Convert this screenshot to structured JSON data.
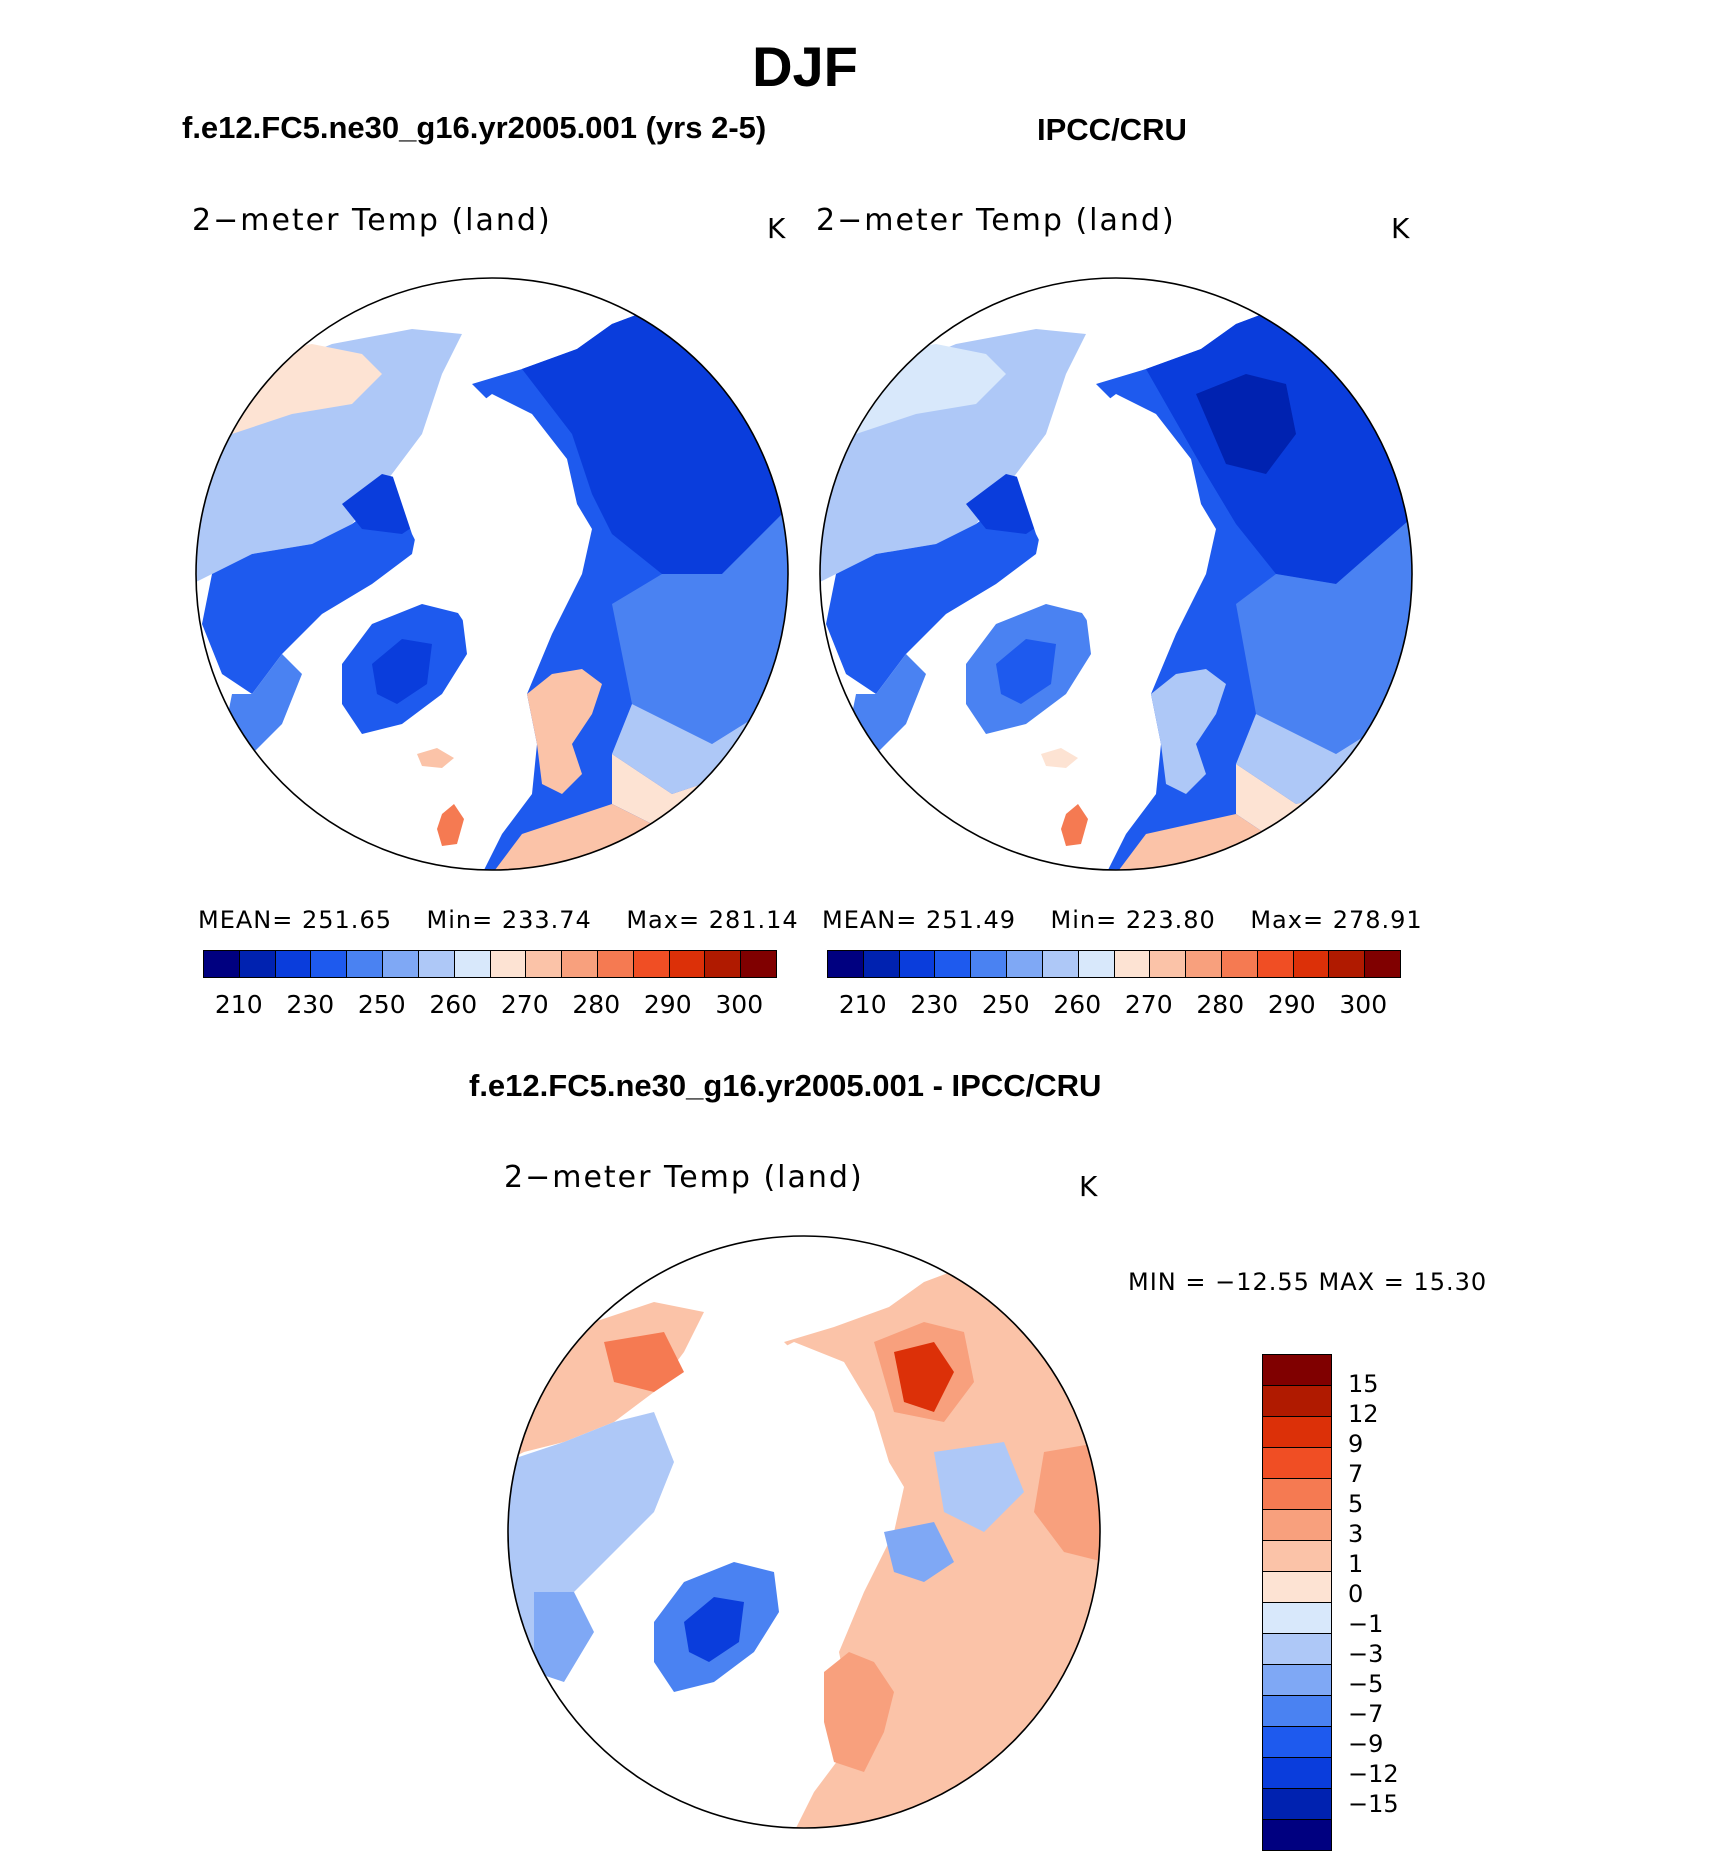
{
  "title": "DJF",
  "panels": {
    "model": {
      "title": "f.e12.FC5.ne30_g16.yr2005.001 (yrs 2-5)",
      "variable": "2−meter Temp (land)",
      "units": "K",
      "mean_label": "MEAN=",
      "mean": "251.65",
      "min_label": "Min=",
      "min": "233.74",
      "max_label": "Max=",
      "max": "281.14"
    },
    "obs": {
      "title": "IPCC/CRU",
      "variable": "2−meter Temp (land)",
      "units": "K",
      "mean_label": "MEAN=",
      "mean": "251.49",
      "min_label": "Min=",
      "min": "223.80",
      "max_label": "Max=",
      "max": "278.91"
    },
    "diff": {
      "title": "f.e12.FC5.ne30_g16.yr2005.001 - IPCC/CRU",
      "variable": "2−meter Temp (land)",
      "units": "K",
      "minmax_text": "MIN = −12.55 MAX =   15.30"
    }
  },
  "colorbar_abs": {
    "ticks": [
      "210",
      "230",
      "250",
      "260",
      "270",
      "280",
      "290",
      "300"
    ],
    "colors": [
      "#000080",
      "#0022b0",
      "#0a3ddc",
      "#1e5aee",
      "#4a82f2",
      "#7fa8f5",
      "#aec8f7",
      "#d8e8fb",
      "#fde3d3",
      "#fbc3a8",
      "#f8a07d",
      "#f57a52",
      "#f04e24",
      "#dc3008",
      "#b01a00",
      "#800000"
    ]
  },
  "colorbar_diff": {
    "ticks": [
      "15",
      "12",
      "9",
      "7",
      "5",
      "3",
      "1",
      "0",
      "−1",
      "−3",
      "−5",
      "−7",
      "−9",
      "−12",
      "−15"
    ],
    "colors": [
      "#800000",
      "#b01a00",
      "#dc3008",
      "#f04e24",
      "#f57a52",
      "#f8a07d",
      "#fbc3a8",
      "#fde3d3",
      "#d8e8fb",
      "#aec8f7",
      "#7fa8f5",
      "#4a82f2",
      "#1e5aee",
      "#0a3ddc",
      "#0022b0",
      "#000080"
    ]
  }
}
